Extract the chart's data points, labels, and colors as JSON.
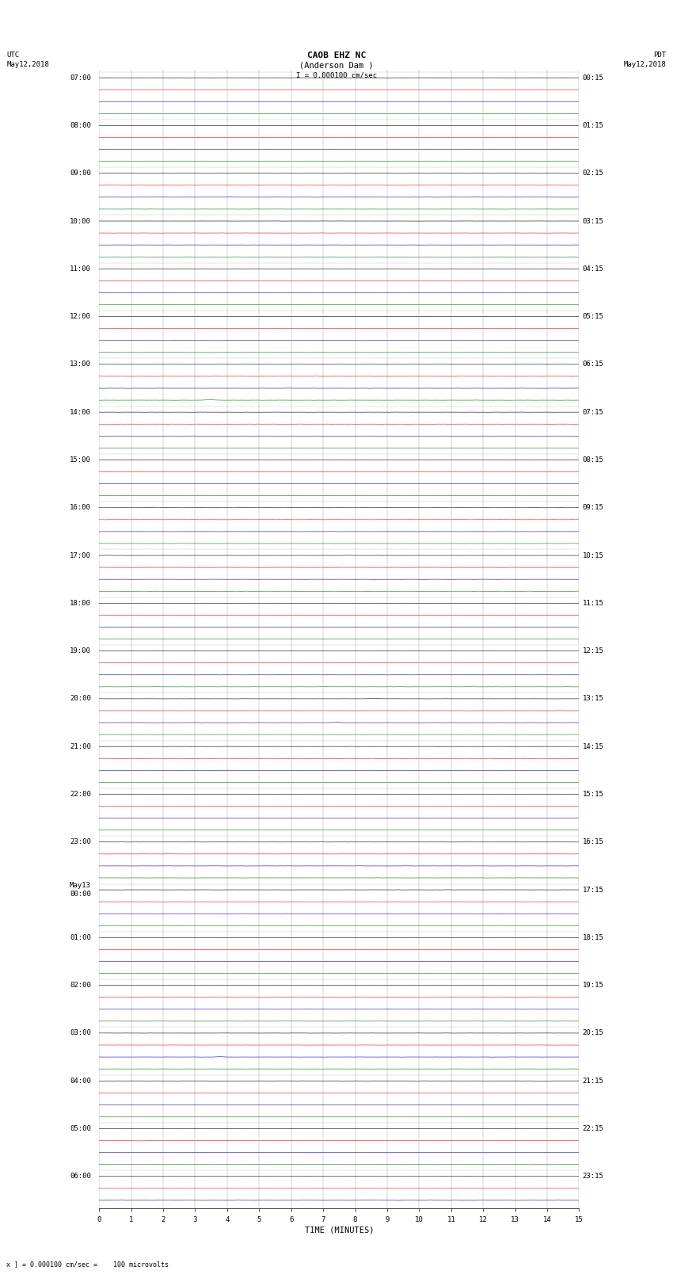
{
  "title_line1": "CAOB EHZ NC",
  "title_line2": "(Anderson Dam )",
  "title_scale": "I = 0.000100 cm/sec",
  "left_label_top": "UTC",
  "left_label_date": "May12,2018",
  "right_label_top": "PDT",
  "right_label_date": "May12,2018",
  "bottom_label": "TIME (MINUTES)",
  "bottom_note": "x ] = 0.000100 cm/sec =    100 microvolts",
  "xlabel_ticks": [
    0,
    1,
    2,
    3,
    4,
    5,
    6,
    7,
    8,
    9,
    10,
    11,
    12,
    13,
    14,
    15
  ],
  "xlim": [
    0,
    15
  ],
  "utc_labels": [
    [
      "07:00",
      0
    ],
    [
      "08:00",
      4
    ],
    [
      "09:00",
      8
    ],
    [
      "10:00",
      12
    ],
    [
      "11:00",
      16
    ],
    [
      "12:00",
      20
    ],
    [
      "13:00",
      24
    ],
    [
      "14:00",
      28
    ],
    [
      "15:00",
      32
    ],
    [
      "16:00",
      36
    ],
    [
      "17:00",
      40
    ],
    [
      "18:00",
      44
    ],
    [
      "19:00",
      48
    ],
    [
      "20:00",
      52
    ],
    [
      "21:00",
      56
    ],
    [
      "22:00",
      60
    ],
    [
      "23:00",
      64
    ],
    [
      "May13\n00:00",
      68
    ],
    [
      "01:00",
      72
    ],
    [
      "02:00",
      76
    ],
    [
      "03:00",
      80
    ],
    [
      "04:00",
      84
    ],
    [
      "05:00",
      88
    ],
    [
      "06:00",
      92
    ]
  ],
  "pdt_labels": [
    [
      "00:15",
      0
    ],
    [
      "01:15",
      4
    ],
    [
      "02:15",
      8
    ],
    [
      "03:15",
      12
    ],
    [
      "04:15",
      16
    ],
    [
      "05:15",
      20
    ],
    [
      "06:15",
      24
    ],
    [
      "07:15",
      28
    ],
    [
      "08:15",
      32
    ],
    [
      "09:15",
      36
    ],
    [
      "10:15",
      40
    ],
    [
      "11:15",
      44
    ],
    [
      "12:15",
      48
    ],
    [
      "13:15",
      52
    ],
    [
      "14:15",
      56
    ],
    [
      "15:15",
      60
    ],
    [
      "16:15",
      64
    ],
    [
      "17:15",
      68
    ],
    [
      "18:15",
      72
    ],
    [
      "19:15",
      76
    ],
    [
      "20:15",
      80
    ],
    [
      "21:15",
      84
    ],
    [
      "22:15",
      88
    ],
    [
      "23:15",
      92
    ]
  ],
  "n_rows": 95,
  "colors_cycle": [
    "black",
    "red",
    "blue",
    "green"
  ],
  "bg_color": "white",
  "trace_amplitude": 0.012,
  "noise_amplitude": 0.012,
  "fig_width": 8.5,
  "fig_height": 16.13,
  "dpi": 100,
  "font_size": 6.5,
  "title_font_size": 8
}
